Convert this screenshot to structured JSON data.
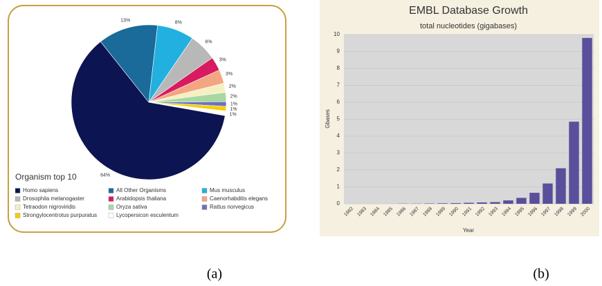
{
  "chart_data": [
    {
      "type": "pie",
      "panel_label": "(a)",
      "legend_title": "Organism top 10",
      "categories": [
        "Homo sapiens",
        "All Other Organisms",
        "Mus musculus",
        "Drosophila melanogaster",
        "Arabidopsis thaliana",
        "Caenorhabditis elegans",
        "Tetraodon nigroviridis",
        "Oryza sativa",
        "Rattus norvegicus",
        "Strongylocentrotus purpuratus",
        "Lycopersicon esculentum"
      ],
      "values": [
        64,
        13,
        8,
        6,
        3,
        3,
        2,
        2,
        1,
        1,
        1
      ],
      "value_labels": [
        "64%",
        "13%",
        "8%",
        "6%",
        "3%",
        "3%",
        "2%",
        "2%",
        "1%",
        "1%",
        "1%"
      ],
      "colors": [
        "#0d1452",
        "#1a6a9a",
        "#22b0e0",
        "#b8b8b8",
        "#d81b60",
        "#f4a582",
        "#f5f0c0",
        "#a8d8a0",
        "#7070c0",
        "#f5d000",
        "#ffffff"
      ]
    },
    {
      "type": "bar",
      "panel_label": "(b)",
      "title": "EMBL Database Growth",
      "subtitle": "total nucleotides (gigabases)",
      "ylabel": "Gbases",
      "xlabel": "Year",
      "categories": [
        "1982",
        "1983",
        "1984",
        "1985",
        "1986",
        "1987",
        "1988",
        "1989",
        "1990",
        "1991",
        "1992",
        "1993",
        "1994",
        "1995",
        "1996",
        "1997",
        "1998",
        "1999",
        "2000"
      ],
      "values": [
        0,
        0,
        0,
        0,
        0.01,
        0.01,
        0.02,
        0.03,
        0.04,
        0.06,
        0.08,
        0.1,
        0.2,
        0.35,
        0.65,
        1.2,
        2.1,
        4.85,
        9.8
      ],
      "color": "#5a4f9a",
      "ylim": [
        0,
        10
      ],
      "yticks": [
        0,
        1,
        2,
        3,
        4,
        5,
        6,
        7,
        8,
        9,
        10
      ],
      "grid": true
    }
  ]
}
